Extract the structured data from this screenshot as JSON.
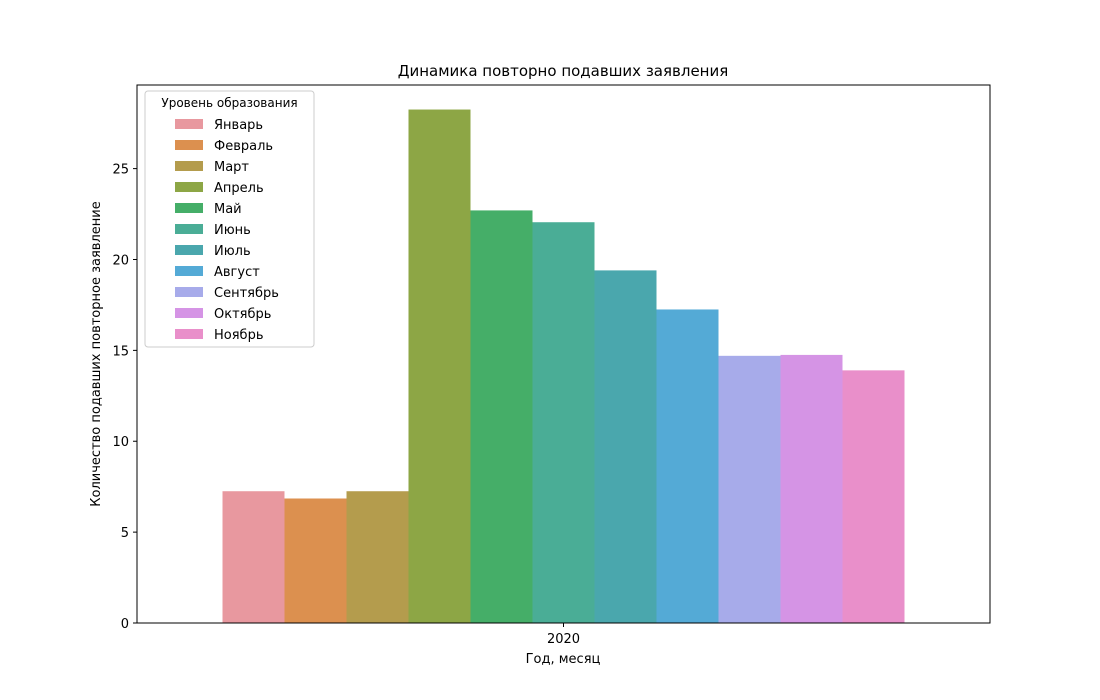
{
  "chart_data": {
    "type": "bar",
    "title": "Динамика повторно подавших заявления",
    "xlabel": "Год, месяц",
    "ylabel": "Количество подавших повторное заявление",
    "categories": [
      "2020"
    ],
    "ylim": [
      0,
      29.6
    ],
    "yticks": [
      0,
      5,
      10,
      15,
      20,
      25
    ],
    "grid": false,
    "legend": {
      "title": "Уровень образования",
      "position": "top-left"
    },
    "series": [
      {
        "name": "Январь",
        "values": [
          7.25
        ],
        "color": "#e8989f"
      },
      {
        "name": "Февраль",
        "values": [
          6.85
        ],
        "color": "#dc904f"
      },
      {
        "name": "Март",
        "values": [
          7.25
        ],
        "color": "#b49c4d"
      },
      {
        "name": "Апрель",
        "values": [
          28.25
        ],
        "color": "#8da645"
      },
      {
        "name": "Май",
        "values": [
          22.7
        ],
        "color": "#45ae68"
      },
      {
        "name": "Июнь",
        "values": [
          22.05
        ],
        "color": "#4aad96"
      },
      {
        "name": "Июль",
        "values": [
          19.4
        ],
        "color": "#4aa7ad"
      },
      {
        "name": "Август",
        "values": [
          17.25
        ],
        "color": "#54aad6"
      },
      {
        "name": "Сентябрь",
        "values": [
          14.7
        ],
        "color": "#a7abea"
      },
      {
        "name": "Октябрь",
        "values": [
          14.75
        ],
        "color": "#d594e5"
      },
      {
        "name": "Ноябрь",
        "values": [
          13.9
        ],
        "color": "#e98fca"
      }
    ]
  }
}
